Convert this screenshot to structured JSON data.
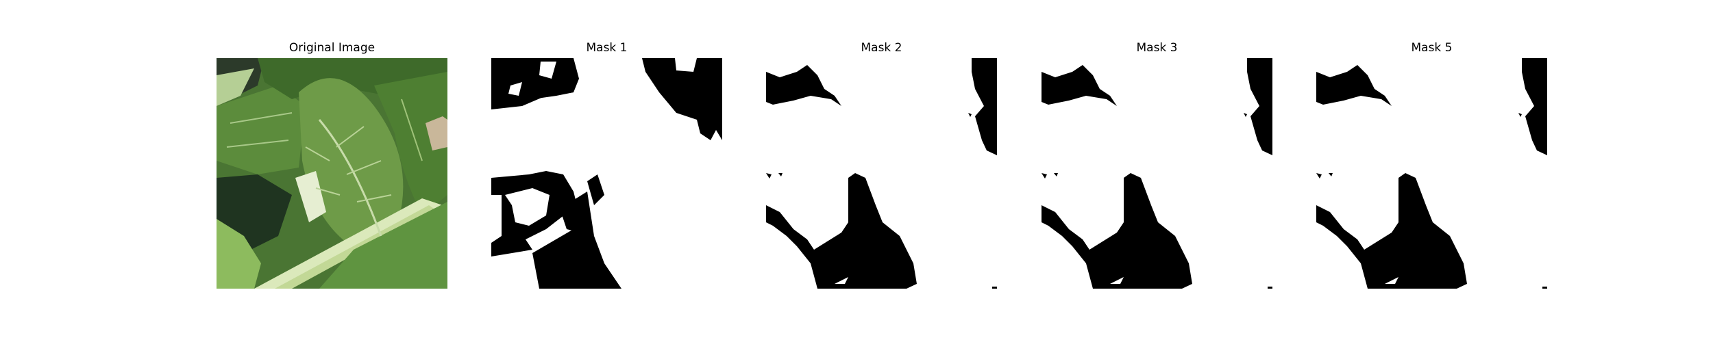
{
  "figure": {
    "panels": [
      {
        "title": "Original Image",
        "kind": "photo"
      },
      {
        "title": "Mask 1",
        "kind": "mask"
      },
      {
        "title": "Mask 2",
        "kind": "mask"
      },
      {
        "title": "Mask 3",
        "kind": "mask"
      },
      {
        "title": "Mask 5",
        "kind": "mask"
      }
    ]
  },
  "colors": {
    "mask_foreground": "#ffffff",
    "mask_background": "#000000",
    "leaf_dark": "#3f6a2c",
    "leaf_mid": "#5f8f3e",
    "leaf_light": "#8ab35a",
    "stem": "#d7e6b5",
    "shadow": "#1c2a18"
  }
}
